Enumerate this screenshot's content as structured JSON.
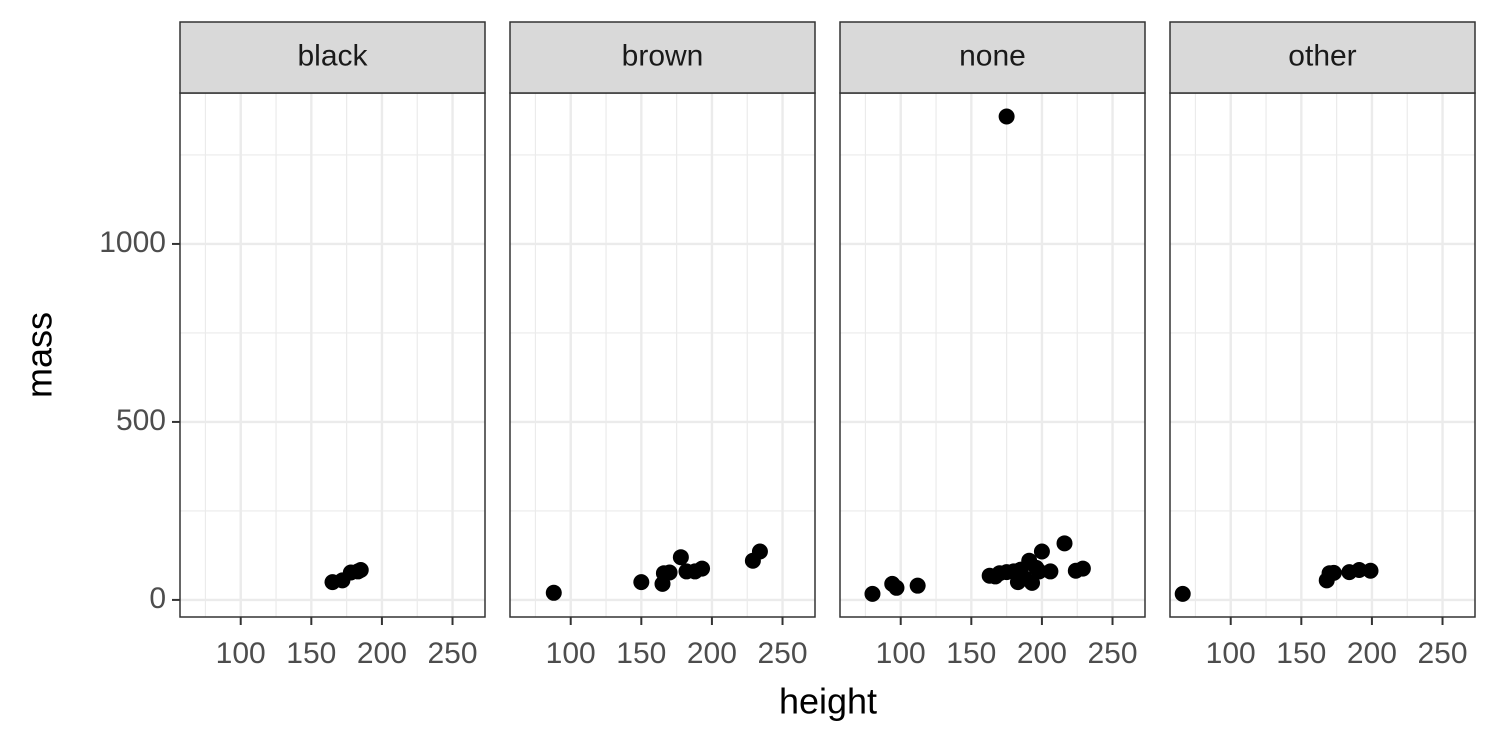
{
  "chart_data": {
    "type": "scatter",
    "xlabel": "height",
    "ylabel": "mass",
    "color": "#000000",
    "grid": true,
    "xlim": [
      57,
      273
    ],
    "ylim": [
      -48,
      1424
    ],
    "xticks": [
      100,
      150,
      200,
      250
    ],
    "xminor_ticks": [
      75,
      125,
      175,
      225
    ],
    "yticks": [
      0,
      500,
      1000
    ],
    "yminor_ticks": [
      250,
      750,
      1250
    ],
    "facets": [
      {
        "title": "black",
        "x": [
          165,
          172,
          178,
          183,
          185
        ],
        "values": [
          50,
          55,
          77,
          80,
          84
        ]
      },
      {
        "title": "brown",
        "x": [
          88,
          150,
          165,
          166,
          170,
          178,
          182,
          188,
          193,
          229,
          234
        ],
        "values": [
          20,
          50,
          45,
          75,
          77,
          120,
          80,
          80,
          88,
          110,
          136
        ]
      },
      {
        "title": "none",
        "x": [
          80,
          94,
          97,
          112,
          175,
          163,
          167,
          170,
          175,
          180,
          183,
          185,
          188,
          191,
          193,
          196,
          198,
          200,
          206,
          216,
          224,
          229
        ],
        "values": [
          17,
          45,
          34,
          40,
          1358,
          68,
          66,
          75,
          78,
          80,
          50,
          85,
          60,
          110,
          48,
          90,
          80,
          136,
          80,
          159,
          82,
          88
        ]
      },
      {
        "title": "other",
        "x": [
          66,
          168,
          170,
          173,
          184,
          191,
          199
        ],
        "values": [
          17,
          55,
          75,
          76,
          78,
          84,
          82
        ]
      }
    ]
  }
}
